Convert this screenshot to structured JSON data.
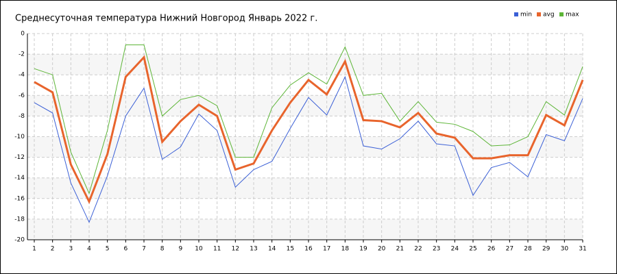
{
  "chart_data": {
    "type": "line",
    "title": "Среднесуточная температура Нижний Новгород  Январь 2022 г.",
    "x": [
      1,
      2,
      3,
      4,
      5,
      6,
      7,
      8,
      9,
      10,
      11,
      12,
      13,
      14,
      15,
      16,
      17,
      18,
      19,
      20,
      21,
      22,
      23,
      24,
      25,
      26,
      27,
      28,
      29,
      30,
      31
    ],
    "xlim": [
      1,
      31
    ],
    "ylim": [
      -20,
      0
    ],
    "yticks": [
      0,
      -2,
      -4,
      -6,
      -8,
      -10,
      -12,
      -14,
      -16,
      -18,
      -20
    ],
    "grid": true,
    "legend": "top-right",
    "series": [
      {
        "name": "min",
        "color": "#3a5fd6",
        "values": [
          -6.7,
          -7.7,
          -14.5,
          -18.3,
          -13.8,
          -8.0,
          -5.3,
          -12.2,
          -11.0,
          -7.8,
          -9.4,
          -14.9,
          -13.2,
          -12.4,
          -9.2,
          -6.2,
          -7.9,
          -4.2,
          -10.9,
          -11.2,
          -10.2,
          -8.5,
          -10.7,
          -10.9,
          -15.7,
          -13.0,
          -12.5,
          -13.9,
          -9.8,
          -10.4,
          -6.3
        ]
      },
      {
        "name": "avg",
        "color": "#e8642c",
        "values": [
          -4.7,
          -5.7,
          -12.7,
          -16.3,
          -11.7,
          -4.2,
          -2.3,
          -10.5,
          -8.5,
          -6.9,
          -8.0,
          -13.2,
          -12.6,
          -9.4,
          -6.7,
          -4.5,
          -5.9,
          -2.7,
          -8.4,
          -8.5,
          -9.1,
          -7.7,
          -9.7,
          -10.1,
          -12.1,
          -12.1,
          -11.8,
          -11.8,
          -7.9,
          -8.9,
          -4.5
        ]
      },
      {
        "name": "max",
        "color": "#5cb536",
        "values": [
          -3.4,
          -4.0,
          -11.5,
          -15.5,
          -9.4,
          -1.1,
          -1.1,
          -8.0,
          -6.4,
          -6.0,
          -7.0,
          -12.0,
          -12.0,
          -7.2,
          -5.0,
          -3.8,
          -4.9,
          -1.3,
          -6.0,
          -5.8,
          -8.5,
          -6.6,
          -8.6,
          -8.8,
          -9.5,
          -10.9,
          -10.8,
          -10.0,
          -6.6,
          -7.9,
          -3.2
        ]
      }
    ]
  }
}
